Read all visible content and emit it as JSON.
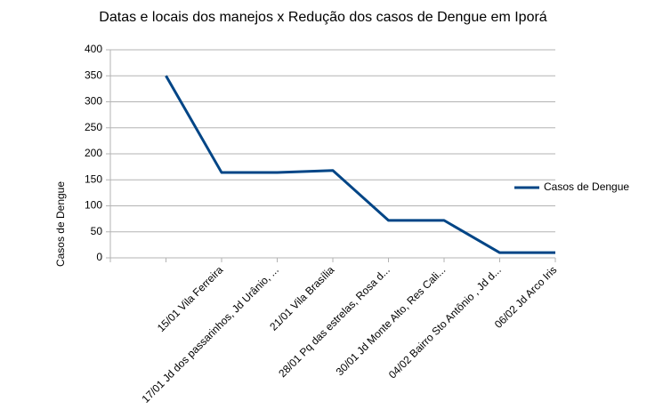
{
  "chart_data": {
    "type": "line",
    "title": "Datas e locais dos manejos x Redução dos casos de Dengue em Iporá",
    "y_label": "Casos de Dengue",
    "categories": [
      null,
      "15/01 Vila Ferreira",
      "17/01 Jd dos passarinhos, Jd Urânio, ...",
      "21/01 Vila Brasília",
      "28/01 Pq das estrelas, Rosa d...",
      "30/01 Jd Monte Alto, Res Cali...",
      "04/02 Bairro Sto Antônio , Jd d...",
      "06/02 Jd Arco Iris"
    ],
    "series": [
      {
        "name": "Casos de Dengue",
        "color": "#004586",
        "values": [
          350,
          164,
          164,
          168,
          72,
          72,
          10,
          10
        ]
      }
    ],
    "ylim": [
      0,
      400
    ],
    "yticks": [
      0,
      50,
      100,
      150,
      200,
      250,
      300,
      350,
      400
    ],
    "grid": true,
    "legend": "right"
  }
}
